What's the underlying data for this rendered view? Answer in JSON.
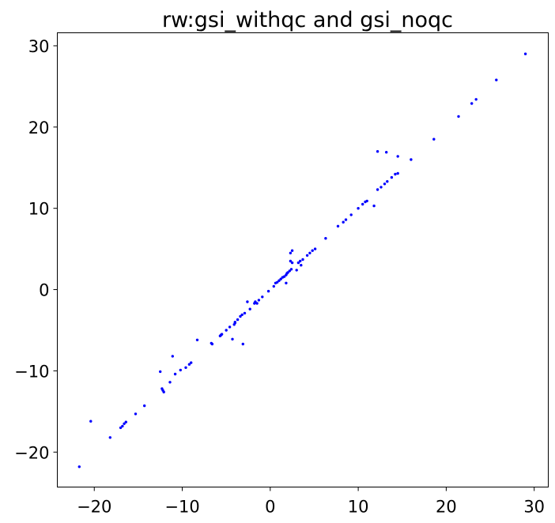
{
  "chart_data": {
    "type": "scatter",
    "title": "rw:gsi_withqc and gsi_noqc",
    "xlabel": "",
    "ylabel": "",
    "xlim": [
      -24.2,
      31.6
    ],
    "ylim": [
      -24.3,
      31.6
    ],
    "x_ticks": [
      -20,
      -10,
      0,
      10,
      20,
      30
    ],
    "x_tick_labels": [
      "−20",
      "−10",
      "0",
      "10",
      "20",
      "30"
    ],
    "y_ticks": [
      -20,
      -10,
      0,
      10,
      20,
      30
    ],
    "y_tick_labels": [
      "−20",
      "−10",
      "0",
      "10",
      "20",
      "30"
    ],
    "grid": false,
    "series": [
      {
        "color": "#0000ff",
        "x": [
          -21.7,
          -20.4,
          -18.2,
          -17.0,
          -16.8,
          -16.6,
          -16.4,
          -15.3,
          -14.3,
          -12.5,
          -12.3,
          -12.2,
          -12.1,
          -11.4,
          -11.1,
          -10.8,
          -10.2,
          -9.6,
          -9.2,
          -9.0,
          -8.3,
          -6.7,
          -6.6,
          -5.7,
          -5.6,
          -5.5,
          -5.0,
          -4.6,
          -4.3,
          -4.1,
          -4.0,
          -4.0,
          -3.7,
          -3.4,
          -3.2,
          -3.1,
          -2.9,
          -2.6,
          -2.3,
          -1.8,
          -1.7,
          -1.5,
          -1.3,
          -0.9,
          -0.2,
          0.4,
          0.6,
          0.8,
          1.0,
          1.2,
          1.4,
          1.6,
          1.8,
          1.9,
          2.0,
          2.2,
          2.3,
          2.4,
          2.5,
          3.0,
          3.2,
          3.4,
          3.5,
          3.7,
          4.2,
          4.5,
          4.8,
          5.1,
          6.3,
          7.7,
          8.3,
          8.6,
          9.2,
          10.0,
          10.5,
          10.8,
          11.0,
          11.8,
          12.2,
          12.6,
          13.0,
          13.3,
          13.8,
          14.2,
          14.5,
          16.0,
          18.6,
          21.4,
          22.9,
          23.4,
          25.7,
          29.0,
          12.2,
          13.2,
          14.5,
          2.3,
          2.5,
          1.8
        ],
        "y": [
          -21.8,
          -16.2,
          -18.2,
          -17.0,
          -16.8,
          -16.5,
          -16.3,
          -15.3,
          -14.3,
          -10.1,
          -12.2,
          -12.4,
          -12.6,
          -11.4,
          -8.2,
          -10.4,
          -9.9,
          -9.6,
          -9.2,
          -9.0,
          -6.2,
          -6.6,
          -6.7,
          -5.7,
          -5.6,
          -5.5,
          -5.0,
          -4.6,
          -6.1,
          -4.3,
          -4.0,
          -4.1,
          -3.7,
          -3.3,
          -3.1,
          -6.7,
          -2.9,
          -1.5,
          -2.4,
          -1.7,
          -1.5,
          -1.7,
          -1.3,
          -0.9,
          -0.2,
          0.4,
          0.8,
          0.9,
          1.1,
          1.3,
          1.5,
          1.6,
          1.8,
          2.0,
          2.1,
          2.3,
          4.5,
          2.5,
          3.3,
          2.4,
          3.3,
          3.5,
          3.0,
          3.7,
          4.2,
          4.5,
          4.8,
          5.0,
          6.3,
          7.8,
          8.3,
          8.6,
          9.2,
          10.0,
          10.5,
          10.8,
          10.9,
          10.3,
          12.3,
          12.6,
          13.0,
          13.3,
          13.8,
          14.2,
          14.3,
          16.0,
          18.5,
          21.3,
          22.9,
          23.4,
          25.8,
          29.0,
          17.0,
          16.9,
          16.4,
          3.5,
          4.8,
          0.8
        ]
      }
    ]
  }
}
